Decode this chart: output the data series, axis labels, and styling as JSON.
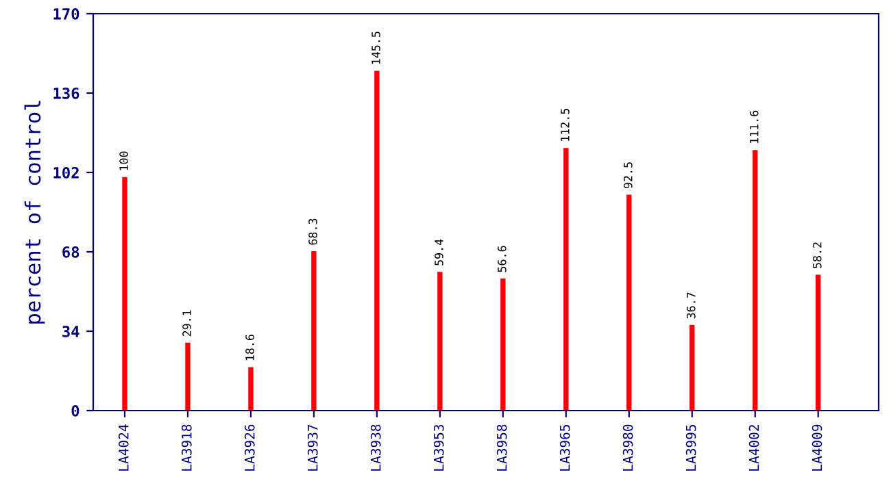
{
  "chart_data": {
    "type": "bar",
    "ylabel": "percent of control",
    "categories": [
      "LA4024",
      "LA3918",
      "LA3926",
      "LA3937",
      "LA3938",
      "LA3953",
      "LA3958",
      "LA3965",
      "LA3980",
      "LA3995",
      "LA4002",
      "LA4009"
    ],
    "values": [
      100,
      29.1,
      18.6,
      68.3,
      145.5,
      59.4,
      56.6,
      112.5,
      92.5,
      36.7,
      111.6,
      58.2
    ],
    "color": "#ff0000",
    "ylim": [
      0,
      170
    ],
    "yticks": [
      0,
      34,
      68,
      102,
      136,
      170
    ],
    "data_labels": true,
    "grid": false,
    "legend": false
  }
}
